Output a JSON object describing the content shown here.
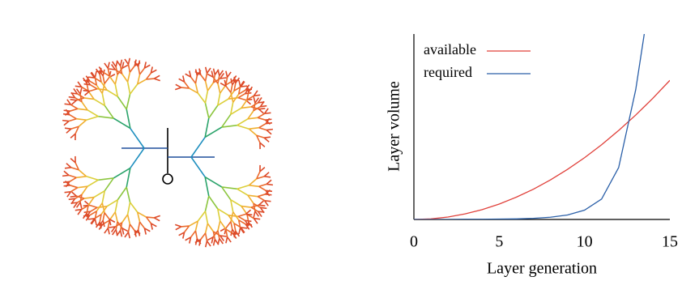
{
  "chart_data": {
    "type": "line",
    "xlabel": "Layer generation",
    "ylabel": "Layer volume",
    "x": [
      0,
      1,
      2,
      3,
      4,
      5,
      6,
      7,
      8,
      9,
      10,
      11,
      12,
      13,
      13.5,
      14,
      15
    ],
    "series": [
      {
        "name": "available",
        "color": "#e0403a",
        "values": [
          0,
          0.3,
          1.3,
          3,
          5.3,
          8.3,
          12,
          16.3,
          21.3,
          27,
          33.3,
          40.3,
          48,
          56.3,
          60.8,
          65.3,
          75
        ]
      },
      {
        "name": "required",
        "color": "#2a5fa8",
        "values": [
          0,
          0,
          0,
          0.1,
          0.1,
          0.2,
          0.3,
          0.6,
          1.2,
          2.4,
          5,
          11,
          28,
          70,
          100,
          null,
          null
        ]
      }
    ],
    "xlim": [
      0,
      15
    ],
    "xticks": [
      0,
      5,
      10,
      15
    ],
    "ylim": [
      0,
      100
    ],
    "legend": "upper left"
  }
}
